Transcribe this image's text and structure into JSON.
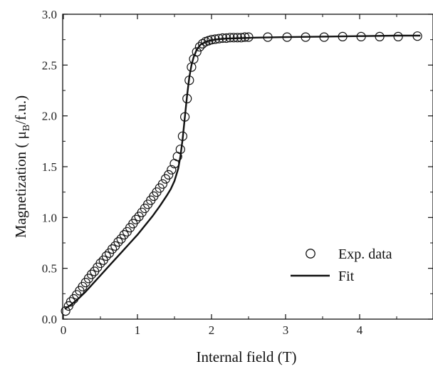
{
  "chart_data": {
    "type": "scatter",
    "xlabel": "Internal field (T)",
    "ylabel_main": "Magnetization ( μ",
    "ylabel_sub": "B",
    "ylabel_tail": "/f.u.)",
    "xlim": [
      0,
      4.85
    ],
    "ylim": [
      0,
      3.0
    ],
    "x_ticks": [
      0,
      1,
      2,
      3,
      4
    ],
    "y_ticks": [
      0.0,
      0.5,
      1.0,
      1.5,
      2.0,
      2.5,
      3.0
    ],
    "x_tick_labels": [
      "0",
      "1",
      "2",
      "3",
      "4"
    ],
    "y_tick_labels": [
      "0.0",
      "0.5",
      "1.0",
      "1.5",
      "2.0",
      "2.5",
      "3.0"
    ],
    "grid": false,
    "legend_position": "bottom-right",
    "series": [
      {
        "name": "Exp. data",
        "style": "open-circle",
        "x": [
          0.03,
          0.07,
          0.1,
          0.14,
          0.18,
          0.22,
          0.26,
          0.3,
          0.34,
          0.38,
          0.42,
          0.46,
          0.5,
          0.54,
          0.58,
          0.62,
          0.66,
          0.7,
          0.74,
          0.78,
          0.82,
          0.86,
          0.9,
          0.94,
          0.98,
          1.02,
          1.06,
          1.1,
          1.14,
          1.18,
          1.22,
          1.26,
          1.3,
          1.34,
          1.38,
          1.42,
          1.46,
          1.5,
          1.54,
          1.58,
          1.61,
          1.64,
          1.67,
          1.7,
          1.73,
          1.76,
          1.8,
          1.84,
          1.88,
          1.92,
          1.96,
          2.0,
          2.05,
          2.1,
          2.15,
          2.2,
          2.25,
          2.3,
          2.35,
          2.4,
          2.45,
          2.5,
          2.76,
          3.02,
          3.27,
          3.52,
          3.77,
          4.02,
          4.27,
          4.52,
          4.78
        ],
        "y": [
          0.08,
          0.13,
          0.17,
          0.2,
          0.24,
          0.28,
          0.32,
          0.36,
          0.4,
          0.44,
          0.47,
          0.51,
          0.55,
          0.58,
          0.62,
          0.65,
          0.69,
          0.72,
          0.76,
          0.79,
          0.83,
          0.86,
          0.9,
          0.94,
          0.98,
          1.01,
          1.05,
          1.09,
          1.13,
          1.17,
          1.21,
          1.25,
          1.29,
          1.33,
          1.38,
          1.42,
          1.47,
          1.53,
          1.6,
          1.67,
          1.8,
          1.99,
          2.17,
          2.35,
          2.48,
          2.56,
          2.63,
          2.68,
          2.71,
          2.73,
          2.74,
          2.75,
          2.755,
          2.76,
          2.765,
          2.765,
          2.77,
          2.77,
          2.77,
          2.77,
          2.775,
          2.775,
          2.775,
          2.775,
          2.775,
          2.775,
          2.78,
          2.78,
          2.78,
          2.78,
          2.785
        ]
      },
      {
        "name": "Fit",
        "style": "solid-line",
        "x": [
          0.02,
          0.1,
          0.2,
          0.3,
          0.4,
          0.5,
          0.6,
          0.7,
          0.8,
          0.9,
          1.0,
          1.1,
          1.2,
          1.3,
          1.4,
          1.45,
          1.5,
          1.55,
          1.58,
          1.61,
          1.64,
          1.67,
          1.7,
          1.73,
          1.76,
          1.8,
          1.85,
          1.9,
          1.95,
          2.0,
          2.1,
          2.2,
          2.4,
          2.6,
          3.0,
          3.5,
          4.0,
          4.5,
          4.82
        ],
        "y": [
          0.1,
          0.14,
          0.2,
          0.27,
          0.35,
          0.43,
          0.51,
          0.59,
          0.67,
          0.75,
          0.83,
          0.92,
          1.01,
          1.11,
          1.22,
          1.28,
          1.36,
          1.48,
          1.6,
          1.77,
          1.99,
          2.2,
          2.38,
          2.5,
          2.58,
          2.65,
          2.7,
          2.72,
          2.735,
          2.745,
          2.755,
          2.76,
          2.765,
          2.77,
          2.775,
          2.78,
          2.785,
          2.79,
          2.79
        ]
      }
    ]
  }
}
